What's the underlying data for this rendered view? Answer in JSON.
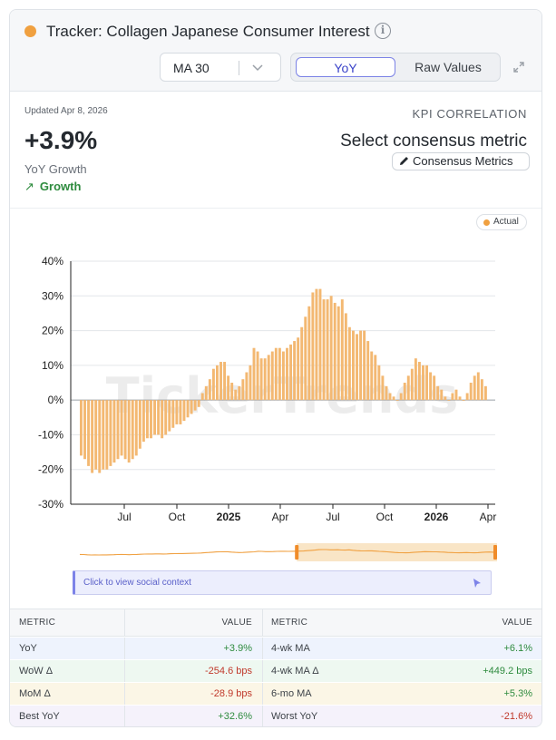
{
  "header": {
    "title": "Tracker: Collagen Japanese Consumer Interest",
    "ma_select": "MA 30",
    "toggle": {
      "yoy": "YoY",
      "raw": "Raw Values"
    }
  },
  "summary": {
    "updated": "Updated Apr 8, 2026",
    "value": "+3.9%",
    "label": "YoY Growth",
    "trend": "Growth",
    "kpi_heading": "KPI CORRELATION",
    "kpi_metric": "Select consensus metric",
    "consensus_button": "Consensus Metrics"
  },
  "legend": {
    "actual": "Actual"
  },
  "watermark": "TickerTrends",
  "social_link": "Click to view social context",
  "colors": {
    "bar": "#f3b872",
    "accent": "#f0a040",
    "positive": "#2e8b3e",
    "negative": "#c0392b"
  },
  "chart_data": {
    "type": "bar",
    "series": [
      {
        "name": "Actual",
        "unit": "% YoY"
      }
    ],
    "y_ticks": [
      "40%",
      "30%",
      "20%",
      "10%",
      "0%",
      "-10%",
      "-20%",
      "-30%"
    ],
    "ylim": [
      -30,
      40
    ],
    "x_ticks": [
      "Jul",
      "Oct",
      "2025",
      "Apr",
      "Jul",
      "Oct",
      "2026",
      "Apr"
    ],
    "x_ticks_bold": [
      false,
      false,
      true,
      false,
      false,
      false,
      true,
      false
    ],
    "values": [
      -16,
      -17,
      -19,
      -21,
      -20,
      -21,
      -20,
      -20,
      -19,
      -18,
      -17,
      -16,
      -17,
      -18,
      -17,
      -16,
      -14,
      -12,
      -11,
      -11,
      -10,
      -10,
      -11,
      -10,
      -9,
      -8,
      -7,
      -7,
      -6,
      -5,
      -4,
      -3,
      -2,
      2,
      4,
      6,
      9,
      10,
      11,
      11,
      7,
      5,
      3,
      4,
      6,
      8,
      10,
      15,
      14,
      12,
      12,
      13,
      14,
      15,
      15,
      14,
      15,
      16,
      17,
      18,
      21,
      24,
      27,
      31,
      32,
      32,
      29,
      29,
      30,
      28,
      27,
      29,
      25,
      21,
      20,
      19,
      20,
      20,
      17,
      14,
      13,
      10,
      7,
      4,
      2,
      1,
      0,
      2,
      5,
      7,
      9,
      12,
      11,
      10,
      10,
      8,
      7,
      4,
      3,
      1,
      0,
      2,
      3,
      1,
      0,
      2,
      5,
      7,
      8,
      6,
      4
    ]
  },
  "minimap": {
    "range_start_pct": 52,
    "range_end_pct": 100
  },
  "table": {
    "headers": [
      "METRIC",
      "VALUE",
      "METRIC",
      "VALUE"
    ],
    "rows": [
      {
        "m1": "YoY",
        "v1": "+3.9%",
        "m2": "4-wk MA",
        "v2": "+6.1%"
      },
      {
        "m1": "WoW Δ",
        "v1": "-254.6 bps",
        "m2": "4-wk MA Δ",
        "v2": "+449.2 bps"
      },
      {
        "m1": "MoM Δ",
        "v1": "-28.9 bps",
        "m2": "6-mo MA",
        "v2": "+5.3%"
      },
      {
        "m1": "Best YoY",
        "v1": "+32.6%",
        "m2": "Worst YoY",
        "v2": "-21.6%"
      }
    ]
  }
}
